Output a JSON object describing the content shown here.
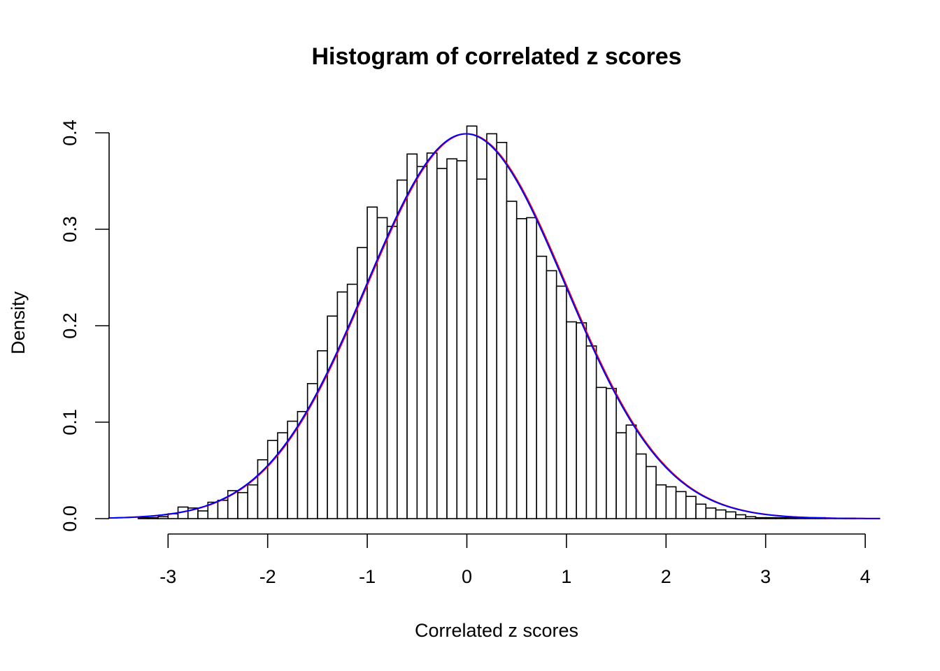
{
  "chart_data": {
    "type": "bar",
    "title": "Histogram of correlated z scores",
    "xlabel": "Correlated z scores",
    "ylabel": "Density",
    "xlim": [
      -3.5,
      4.15
    ],
    "ylim": [
      0,
      0.4
    ],
    "xticks": [
      -3,
      -2,
      -1,
      0,
      1,
      2,
      3,
      4
    ],
    "xtick_labels": [
      "-3",
      "-2",
      "-1",
      "0",
      "1",
      "2",
      "3",
      "4"
    ],
    "yticks": [
      0.0,
      0.1,
      0.2,
      0.3,
      0.4
    ],
    "ytick_labels": [
      "0.0",
      "0.1",
      "0.2",
      "0.3",
      "0.4"
    ],
    "bin_start": -3.3,
    "bin_width": 0.1,
    "densities": [
      0.001,
      0.001,
      0.002,
      0.005,
      0.012,
      0.011,
      0.008,
      0.017,
      0.019,
      0.029,
      0.027,
      0.035,
      0.061,
      0.081,
      0.089,
      0.101,
      0.111,
      0.14,
      0.174,
      0.21,
      0.235,
      0.243,
      0.281,
      0.323,
      0.312,
      0.303,
      0.351,
      0.378,
      0.365,
      0.379,
      0.363,
      0.373,
      0.371,
      0.407,
      0.352,
      0.399,
      0.39,
      0.329,
      0.311,
      0.312,
      0.272,
      0.257,
      0.241,
      0.204,
      0.203,
      0.179,
      0.136,
      0.135,
      0.089,
      0.097,
      0.067,
      0.054,
      0.035,
      0.033,
      0.028,
      0.023,
      0.015,
      0.011,
      0.009,
      0.007,
      0.004,
      0.002,
      0.001,
      0.001,
      0.001,
      0.001,
      0.001,
      0.001,
      0.001,
      0.0005,
      0.0005,
      0.0005
    ],
    "curves": [
      {
        "color": "#ff0000",
        "mean": 0.0,
        "sd": 1.0
      },
      {
        "color": "#0000ff",
        "mean": -0.01,
        "sd": 1.0
      }
    ],
    "bar_fill": "#ffffff",
    "bar_stroke": "#000000"
  }
}
